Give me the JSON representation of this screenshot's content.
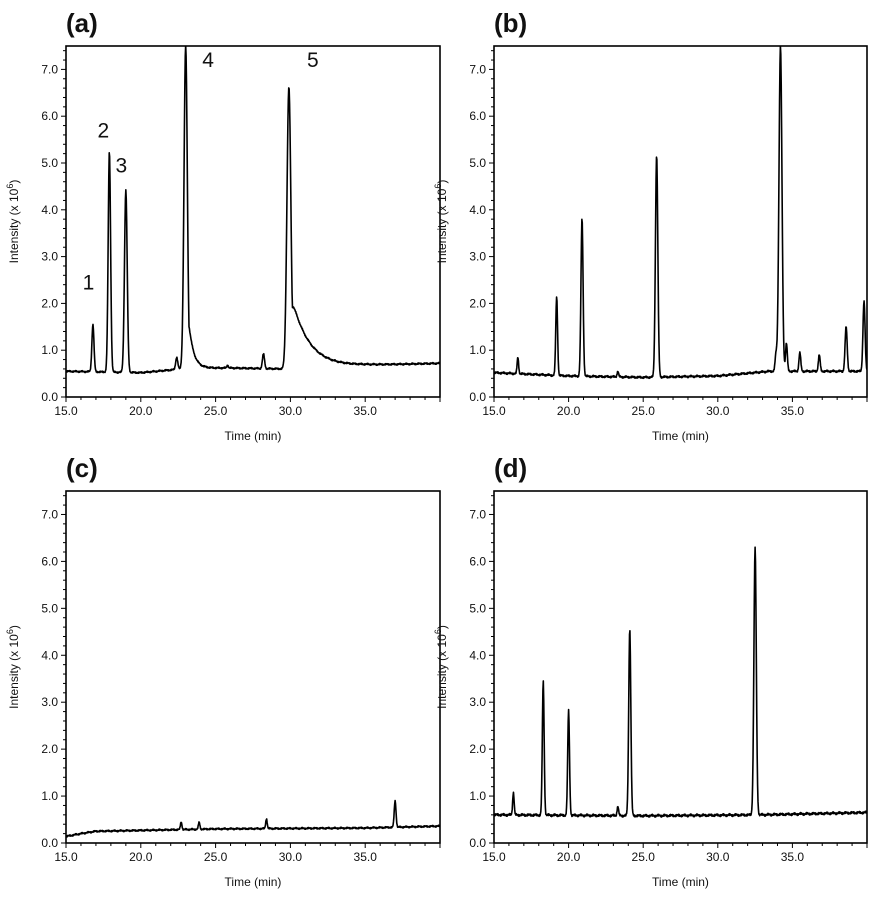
{
  "chart_data": [
    {
      "type": "line",
      "panel_label": "(a)",
      "xlabel": "Time (min)",
      "ylabel_text": "Intensity (x 10",
      "ylabel_exp": "6",
      "ylabel_close": ")",
      "xlim": [
        15.0,
        40.0
      ],
      "ylim": [
        0.0,
        7.5
      ],
      "x_ticks": [
        "15.0",
        "20.0",
        "25.0",
        "30.0",
        "35.0"
      ],
      "y_ticks": [
        "0.0",
        "1.0",
        "2.0",
        "3.0",
        "4.0",
        "5.0",
        "6.0",
        "7.0"
      ],
      "series": [
        {
          "baseline": [
            [
              15.0,
              0.55
            ],
            [
              20.0,
              0.52
            ],
            [
              23.5,
              0.62
            ],
            [
              26.0,
              0.62
            ],
            [
              29.6,
              0.6
            ],
            [
              35.0,
              0.68
            ],
            [
              40.0,
              0.72
            ]
          ],
          "noise": 0.02,
          "peaks": [
            {
              "time": 16.8,
              "height": 1.55,
              "width": 0.07
            },
            {
              "time": 17.9,
              "height": 5.25,
              "width": 0.08
            },
            {
              "time": 19.0,
              "height": 4.42,
              "width": 0.09
            },
            {
              "time": 22.4,
              "height": 0.85,
              "width": 0.07
            },
            {
              "time": 23.0,
              "height": 7.5,
              "width": 0.11,
              "tail": 0.3
            },
            {
              "time": 25.8,
              "height": 0.68,
              "width": 0.05
            },
            {
              "time": 28.2,
              "height": 0.92,
              "width": 0.07
            },
            {
              "time": 29.9,
              "height": 6.62,
              "width": 0.13,
              "tail": 1.15
            }
          ]
        }
      ],
      "annotations": [
        {
          "text": "1",
          "x": 16.5,
          "y": 2.3
        },
        {
          "text": "2",
          "x": 17.5,
          "y": 5.55
        },
        {
          "text": "3",
          "x": 18.7,
          "y": 4.8
        },
        {
          "text": "4",
          "x": 24.5,
          "y": 7.05
        },
        {
          "text": "5",
          "x": 31.5,
          "y": 7.05
        }
      ]
    },
    {
      "type": "line",
      "panel_label": "(b)",
      "xlabel": "Time (min)",
      "ylabel_text": "Intensity (x 10",
      "ylabel_exp": "6",
      "ylabel_close": ")",
      "xlim": [
        15.0,
        40.0
      ],
      "ylim": [
        0.0,
        7.5
      ],
      "x_ticks": [
        "15.0",
        "20.0",
        "25.0",
        "30.0",
        "35.0"
      ],
      "y_ticks": [
        "0.0",
        "1.0",
        "2.0",
        "3.0",
        "4.0",
        "5.0",
        "6.0",
        "7.0"
      ],
      "series": [
        {
          "baseline": [
            [
              15.0,
              0.52
            ],
            [
              20.0,
              0.45
            ],
            [
              25.0,
              0.42
            ],
            [
              30.0,
              0.45
            ],
            [
              33.5,
              0.55
            ],
            [
              40.0,
              0.55
            ]
          ],
          "noise": 0.025,
          "peaks": [
            {
              "time": 16.6,
              "height": 0.85,
              "width": 0.05
            },
            {
              "time": 19.2,
              "height": 2.15,
              "width": 0.06
            },
            {
              "time": 20.9,
              "height": 3.82,
              "width": 0.07
            },
            {
              "time": 23.3,
              "height": 0.55,
              "width": 0.05
            },
            {
              "time": 25.9,
              "height": 5.18,
              "width": 0.08
            },
            {
              "time": 33.9,
              "height": 0.9,
              "width": 0.06
            },
            {
              "time": 34.2,
              "height": 7.5,
              "width": 0.1
            },
            {
              "time": 34.6,
              "height": 1.15,
              "width": 0.06
            },
            {
              "time": 35.5,
              "height": 0.95,
              "width": 0.06
            },
            {
              "time": 36.8,
              "height": 0.9,
              "width": 0.06
            },
            {
              "time": 38.6,
              "height": 1.5,
              "width": 0.07
            },
            {
              "time": 39.8,
              "height": 2.05,
              "width": 0.07
            }
          ]
        }
      ],
      "annotations": []
    },
    {
      "type": "line",
      "panel_label": "(c)",
      "xlabel": "Time (min)",
      "ylabel_text": "Intensity (x 10",
      "ylabel_exp": "6",
      "ylabel_close": ")",
      "xlim": [
        15.0,
        40.0
      ],
      "ylim": [
        0.0,
        7.5
      ],
      "x_ticks": [
        "15.0",
        "20.0",
        "25.0",
        "30.0",
        "35.0"
      ],
      "y_ticks": [
        "0.0",
        "1.0",
        "2.0",
        "3.0",
        "4.0",
        "5.0",
        "6.0",
        "7.0"
      ],
      "series": [
        {
          "baseline": [
            [
              15.0,
              0.14
            ],
            [
              16.0,
              0.2
            ],
            [
              17.0,
              0.25
            ],
            [
              25.0,
              0.3
            ],
            [
              35.0,
              0.32
            ],
            [
              40.0,
              0.36
            ]
          ],
          "noise": 0.02,
          "peaks": [
            {
              "time": 22.7,
              "height": 0.45,
              "width": 0.05
            },
            {
              "time": 23.9,
              "height": 0.44,
              "width": 0.05
            },
            {
              "time": 28.4,
              "height": 0.52,
              "width": 0.05
            },
            {
              "time": 37.0,
              "height": 0.9,
              "width": 0.06
            }
          ]
        }
      ],
      "annotations": []
    },
    {
      "type": "line",
      "panel_label": "(d)",
      "xlabel": "Time (min)",
      "ylabel_text": "Intensity (x 10",
      "ylabel_exp": "6",
      "ylabel_close": ")",
      "xlim": [
        15.0,
        40.0
      ],
      "ylim": [
        0.0,
        7.5
      ],
      "x_ticks": [
        "15.0",
        "20.0",
        "25.0",
        "30.0",
        "35.0"
      ],
      "y_ticks": [
        "0.0",
        "1.0",
        "2.0",
        "3.0",
        "4.0",
        "5.0",
        "6.0",
        "7.0"
      ],
      "series": [
        {
          "baseline": [
            [
              15.0,
              0.6
            ],
            [
              25.0,
              0.58
            ],
            [
              33.0,
              0.6
            ],
            [
              40.0,
              0.65
            ]
          ],
          "noise": 0.03,
          "peaks": [
            {
              "time": 16.3,
              "height": 1.08,
              "width": 0.05
            },
            {
              "time": 18.3,
              "height": 3.45,
              "width": 0.06
            },
            {
              "time": 20.0,
              "height": 2.82,
              "width": 0.06
            },
            {
              "time": 23.3,
              "height": 0.78,
              "width": 0.05
            },
            {
              "time": 24.1,
              "height": 4.58,
              "width": 0.07
            },
            {
              "time": 32.5,
              "height": 6.3,
              "width": 0.08
            }
          ]
        }
      ],
      "annotations": []
    }
  ]
}
